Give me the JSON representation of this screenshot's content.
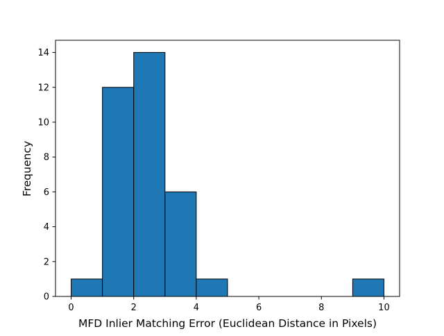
{
  "chart_data": {
    "type": "bar",
    "subtype": "histogram",
    "xlabel": "MFD Inlier Matching Error (Euclidean Distance in Pixels)",
    "ylabel": "Frequency",
    "bins": [
      {
        "start": 0,
        "end": 1,
        "count": 1
      },
      {
        "start": 1,
        "end": 2,
        "count": 12
      },
      {
        "start": 2,
        "end": 3,
        "count": 14
      },
      {
        "start": 3,
        "end": 4,
        "count": 6
      },
      {
        "start": 4,
        "end": 5,
        "count": 1
      },
      {
        "start": 5,
        "end": 6,
        "count": 0
      },
      {
        "start": 6,
        "end": 7,
        "count": 0
      },
      {
        "start": 7,
        "end": 8,
        "count": 0
      },
      {
        "start": 8,
        "end": 9,
        "count": 0
      },
      {
        "start": 9,
        "end": 10,
        "count": 1
      }
    ],
    "xlim": [
      -0.5,
      10.5
    ],
    "ylim": [
      0,
      14.7
    ],
    "xticks": [
      0,
      2,
      4,
      6,
      8,
      10
    ],
    "yticks": [
      0,
      2,
      4,
      6,
      8,
      10,
      12,
      14
    ],
    "grid": false,
    "bar_color": "#1f77b4",
    "edge_color": "#000000"
  }
}
